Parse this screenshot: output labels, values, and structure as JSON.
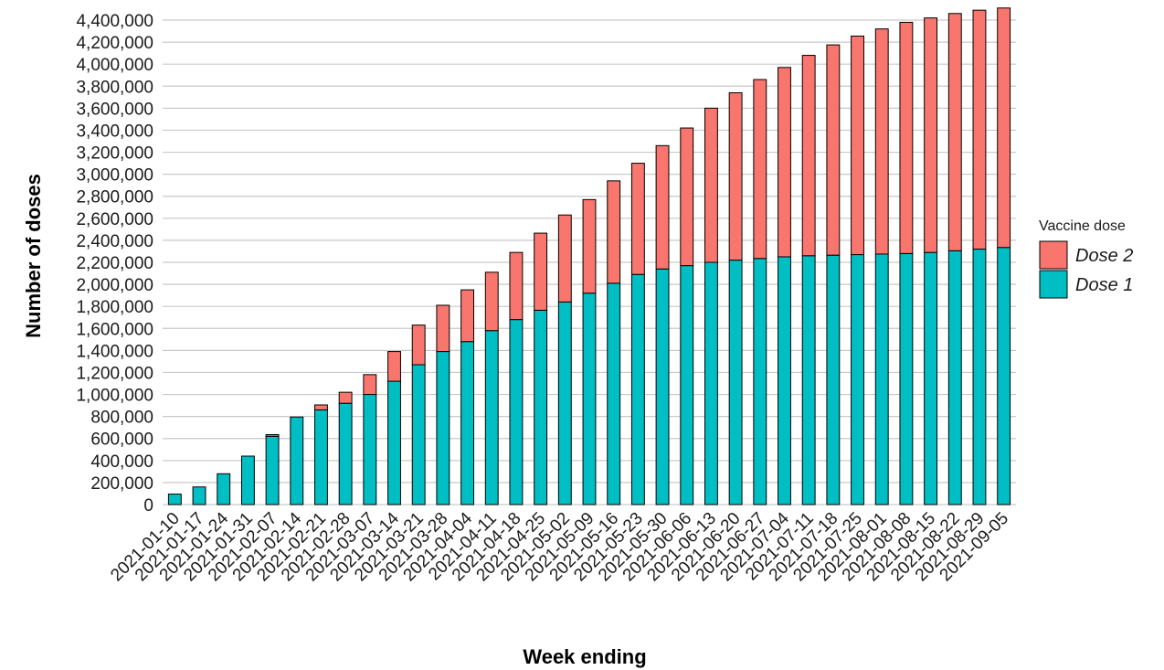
{
  "chart_data": {
    "type": "bar",
    "stacked": true,
    "title": "",
    "xlabel": "Week ending",
    "ylabel": "Number of doses",
    "ylim": [
      0,
      4500000
    ],
    "yticks": [
      0,
      200000,
      400000,
      600000,
      800000,
      1000000,
      1200000,
      1400000,
      1600000,
      1800000,
      2000000,
      2200000,
      2400000,
      2600000,
      2800000,
      3000000,
      3200000,
      3400000,
      3600000,
      3800000,
      4000000,
      4200000,
      4400000
    ],
    "ytick_labels": [
      "0",
      "200,000",
      "400,000",
      "600,000",
      "800,000",
      "1,000,000",
      "1,200,000",
      "1,400,000",
      "1,600,000",
      "1,800,000",
      "2,000,000",
      "2,200,000",
      "2,400,000",
      "2,600,000",
      "2,800,000",
      "3,000,000",
      "3,200,000",
      "3,400,000",
      "3,600,000",
      "3,800,000",
      "4,000,000",
      "4,200,000",
      "4,400,000"
    ],
    "grid": "horizontal",
    "legend": {
      "title": "Vaccine dose",
      "position": "right"
    },
    "categories": [
      "2021-01-10",
      "2021-01-17",
      "2021-01-24",
      "2021-01-31",
      "2021-02-07",
      "2021-02-14",
      "2021-02-21",
      "2021-02-28",
      "2021-03-07",
      "2021-03-14",
      "2021-03-21",
      "2021-03-28",
      "2021-04-04",
      "2021-04-11",
      "2021-04-18",
      "2021-04-25",
      "2021-05-02",
      "2021-05-09",
      "2021-05-16",
      "2021-05-23",
      "2021-05-30",
      "2021-06-06",
      "2021-06-13",
      "2021-06-20",
      "2021-06-27",
      "2021-07-04",
      "2021-07-11",
      "2021-07-18",
      "2021-07-25",
      "2021-08-01",
      "2021-08-08",
      "2021-08-15",
      "2021-08-22",
      "2021-08-29",
      "2021-09-05"
    ],
    "series": [
      {
        "name": "Dose 1",
        "color": "#00BFC4",
        "values": [
          95000,
          160000,
          280000,
          440000,
          620000,
          795000,
          860000,
          920000,
          1000000,
          1120000,
          1270000,
          1390000,
          1480000,
          1580000,
          1680000,
          1765000,
          1840000,
          1920000,
          2010000,
          2090000,
          2140000,
          2170000,
          2200000,
          2220000,
          2235000,
          2250000,
          2260000,
          2265000,
          2270000,
          2275000,
          2280000,
          2290000,
          2305000,
          2320000,
          2335000
        ]
      },
      {
        "name": "Dose 2",
        "color": "#F8766D",
        "values": [
          0,
          0,
          0,
          0,
          15000,
          0,
          45000,
          100000,
          180000,
          270000,
          360000,
          420000,
          470000,
          530000,
          610000,
          700000,
          790000,
          850000,
          930000,
          1010000,
          1120000,
          1250000,
          1400000,
          1520000,
          1625000,
          1720000,
          1820000,
          1910000,
          1985000,
          2045000,
          2100000,
          2130000,
          2155000,
          2170000,
          2175000
        ]
      }
    ]
  }
}
